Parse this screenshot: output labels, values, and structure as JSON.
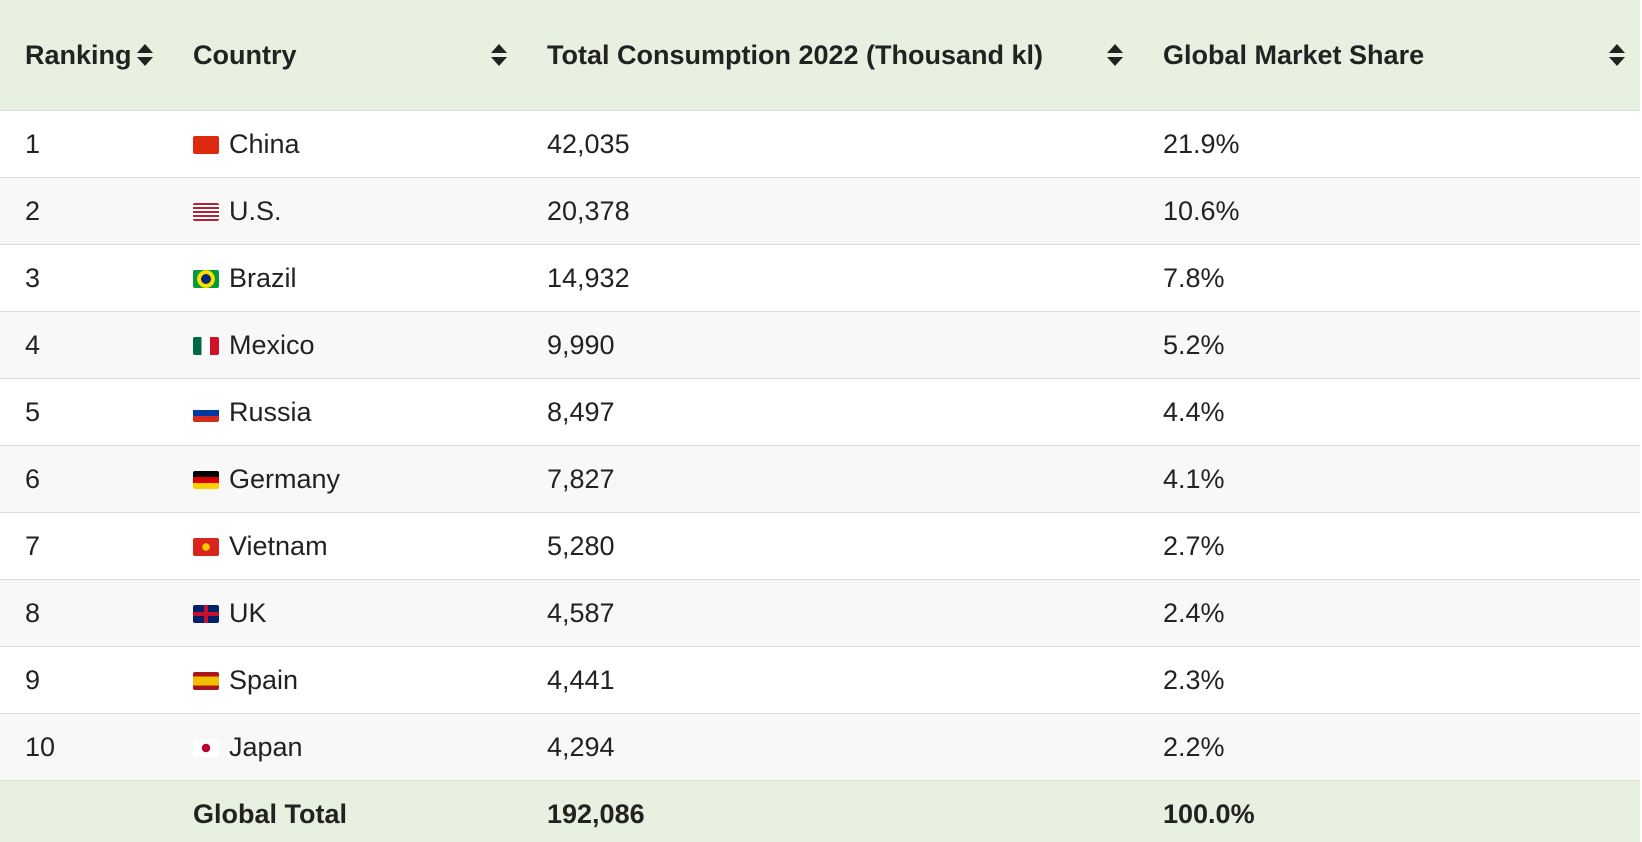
{
  "table": {
    "columns": [
      "Ranking",
      "Country",
      "Total Consumption 2022 (Thousand kl)",
      "Global Market Share"
    ],
    "rows": [
      [
        "1",
        "China",
        "42,035",
        "21.9%"
      ],
      [
        "2",
        "U.S.",
        "20,378",
        "10.6%"
      ],
      [
        "3",
        "Brazil",
        "14,932",
        "7.8%"
      ],
      [
        "4",
        "Mexico",
        "9,990",
        "5.2%"
      ],
      [
        "5",
        "Russia",
        "8,497",
        "4.4%"
      ],
      [
        "6",
        "Germany",
        "7,827",
        "4.1%"
      ],
      [
        "7",
        "Vietnam",
        "5,280",
        "2.7%"
      ],
      [
        "8",
        "UK",
        "4,587",
        "2.4%"
      ],
      [
        "9",
        "Spain",
        "4,441",
        "2.3%"
      ],
      [
        "10",
        "Japan",
        "4,294",
        "2.2%"
      ]
    ],
    "footer": [
      "Global Total",
      "192,086",
      "100.0%"
    ]
  }
}
